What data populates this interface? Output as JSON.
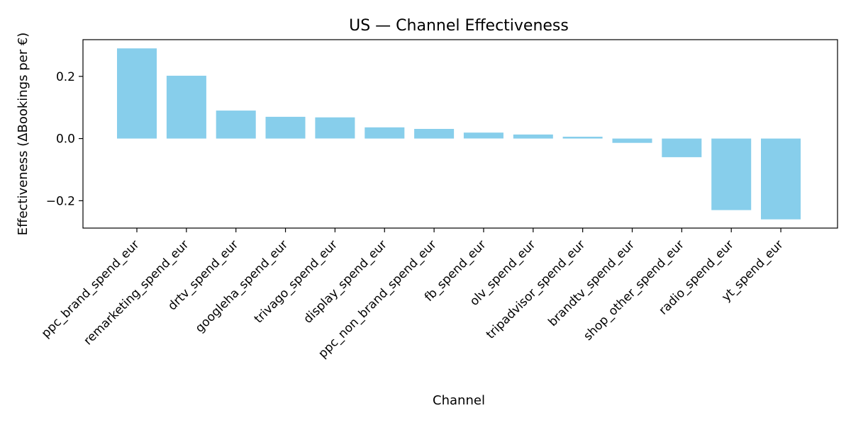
{
  "chart_data": {
    "type": "bar",
    "title": "US — Channel Effectiveness",
    "xlabel": "Channel",
    "ylabel": "Effectiveness (ΔBookings per €)",
    "categories": [
      "ppc_brand_spend_eur",
      "remarketing_spend_eur",
      "drtv_spend_eur",
      "googleha_spend_eur",
      "trivago_spend_eur",
      "display_spend_eur",
      "ppc_non_brand_spend_eur",
      "fb_spend_eur",
      "olv_spend_eur",
      "tripadvisor_spend_eur",
      "brandtv_spend_eur",
      "shop_other_spend_eur",
      "radio_spend_eur",
      "yt_spend_eur"
    ],
    "values": [
      0.29,
      0.202,
      0.09,
      0.07,
      0.068,
      0.036,
      0.031,
      0.019,
      0.013,
      0.006,
      -0.014,
      -0.06,
      -0.23,
      -0.26
    ],
    "ylim": [
      -0.288,
      0.318
    ],
    "yticks": [
      -0.2,
      0.0,
      0.2
    ],
    "ytick_labels": [
      "−0.2",
      "0.0",
      "0.2"
    ],
    "bar_color": "#87ceeb",
    "grid": false,
    "legend": "none"
  }
}
